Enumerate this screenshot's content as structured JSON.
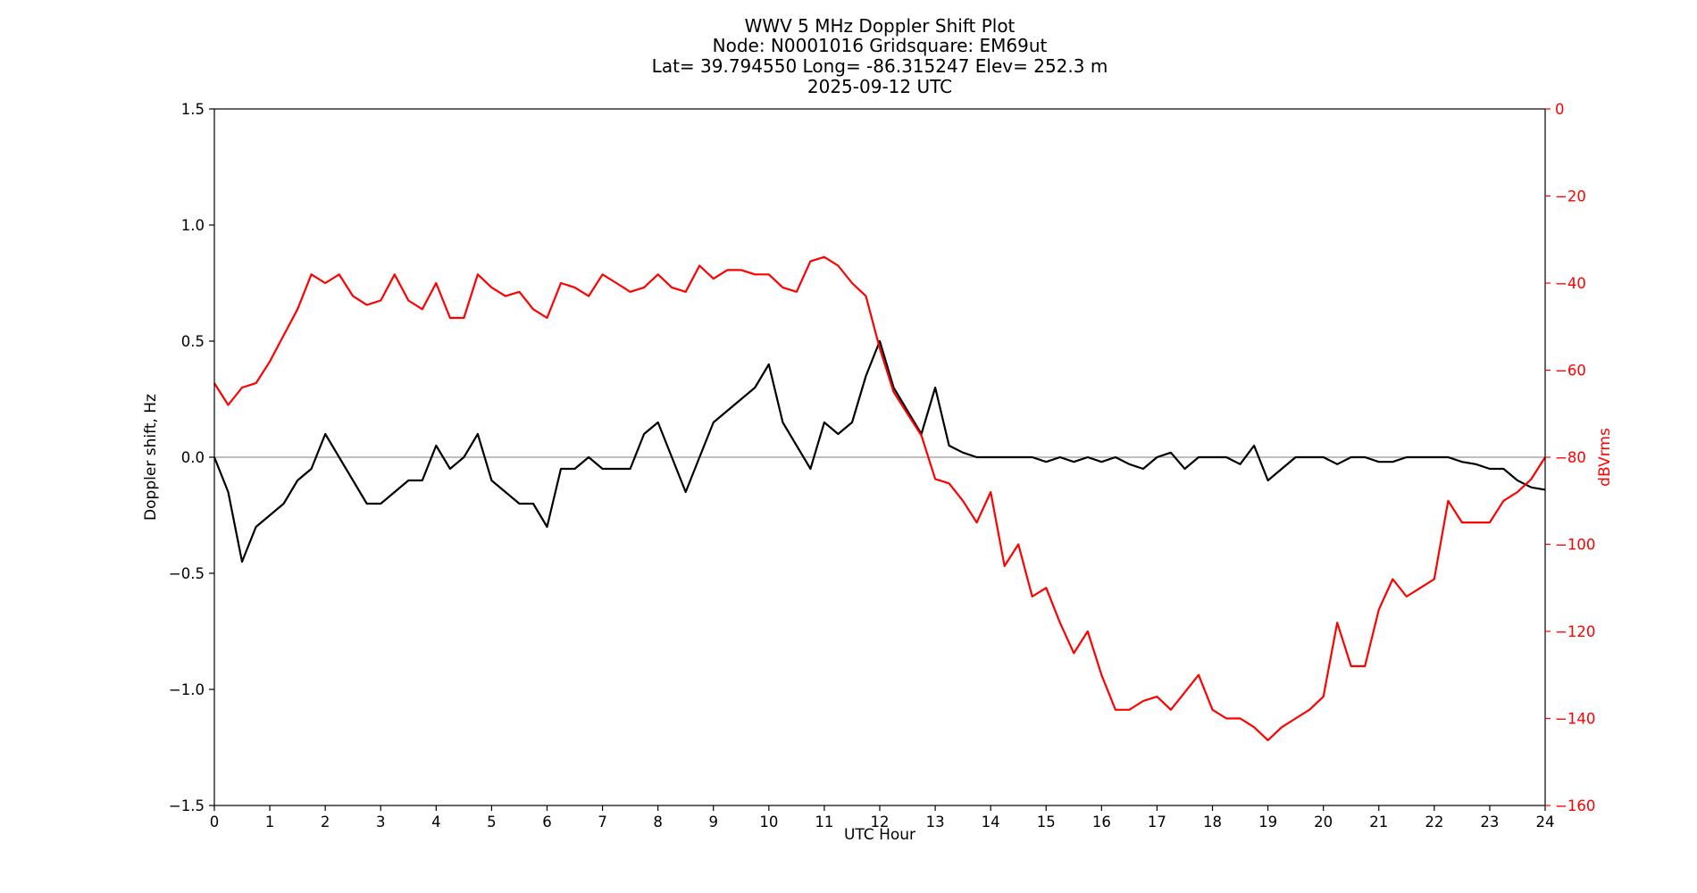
{
  "chart_data": {
    "type": "line",
    "title_lines": [
      "WWV 5 MHz Doppler Shift Plot",
      "Node:  N0001016     Gridsquare:  EM69ut",
      "Lat= 39.794550    Long= -86.315247    Elev= 252.3 m",
      "2025-09-12  UTC"
    ],
    "xlabel": "UTC Hour",
    "ylabel_left": "Doppler shift, Hz",
    "ylabel_right": "dBVrms",
    "xlim": [
      0,
      24
    ],
    "ylim_left": [
      -1.5,
      1.5
    ],
    "ylim_right": [
      -160,
      0
    ],
    "x_ticks": [
      "0",
      "1",
      "2",
      "3",
      "4",
      "5",
      "6",
      "7",
      "8",
      "9",
      "10",
      "11",
      "12",
      "13",
      "14",
      "15",
      "16",
      "17",
      "18",
      "19",
      "20",
      "21",
      "22",
      "23",
      "24"
    ],
    "y_ticks_left": [
      "1.5",
      "1.0",
      "0.5",
      "0.0",
      "−0.5",
      "−1.0",
      "−1.5"
    ],
    "y_ticks_right": [
      "0",
      "−20",
      "−40",
      "−60",
      "−80",
      "−100",
      "−120",
      "−140",
      "−160"
    ],
    "zero_reference_line": 0.0,
    "colors": {
      "doppler": "#000000",
      "power": "#ff0000",
      "zero_line": "#999999",
      "right_axis": "#ff0000"
    },
    "series": [
      {
        "axis": "left",
        "x": [
          0,
          0.25,
          0.5,
          0.75,
          1,
          1.25,
          1.5,
          1.75,
          2,
          2.25,
          2.5,
          2.75,
          3,
          3.25,
          3.5,
          3.75,
          4,
          4.25,
          4.5,
          4.75,
          5,
          5.25,
          5.5,
          5.75,
          6,
          6.25,
          6.5,
          6.75,
          7,
          7.25,
          7.5,
          7.75,
          8,
          8.25,
          8.5,
          8.75,
          9,
          9.25,
          9.5,
          9.75,
          10,
          10.25,
          10.5,
          10.75,
          11,
          11.25,
          11.5,
          11.75,
          12,
          12.25,
          12.5,
          12.75,
          13,
          13.25,
          13.5,
          13.75,
          14,
          14.25,
          14.5,
          14.75,
          15,
          15.25,
          15.5,
          15.75,
          16,
          16.25,
          16.5,
          16.75,
          17,
          17.25,
          17.5,
          17.75,
          18,
          18.25,
          18.5,
          18.75,
          19,
          19.25,
          19.5,
          19.75,
          20,
          20.25,
          20.5,
          20.75,
          21,
          21.25,
          21.5,
          21.75,
          22,
          22.25,
          22.5,
          22.75,
          23,
          23.25,
          23.5,
          23.75,
          24
        ],
        "values": [
          0.0,
          -0.15,
          -0.45,
          -0.3,
          -0.25,
          -0.2,
          -0.1,
          -0.05,
          0.1,
          0.0,
          -0.1,
          -0.2,
          -0.2,
          -0.15,
          -0.1,
          -0.1,
          0.05,
          -0.05,
          0.0,
          0.1,
          -0.1,
          -0.15,
          -0.2,
          -0.2,
          -0.3,
          -0.05,
          -0.05,
          0.0,
          -0.05,
          -0.05,
          -0.05,
          0.1,
          0.15,
          0.0,
          -0.15,
          0.0,
          0.15,
          0.2,
          0.25,
          0.3,
          0.4,
          0.15,
          0.05,
          -0.05,
          0.15,
          0.1,
          0.15,
          0.35,
          0.5,
          0.3,
          0.2,
          0.1,
          0.3,
          0.05,
          0.02,
          0.0,
          0.0,
          0.0,
          0.0,
          0.0,
          -0.02,
          0.0,
          -0.02,
          0.0,
          -0.02,
          0.0,
          -0.03,
          -0.05,
          0.0,
          0.02,
          -0.05,
          0.0,
          0.0,
          0.0,
          -0.03,
          0.05,
          -0.1,
          -0.05,
          0.0,
          0.0,
          0.0,
          -0.03,
          0.0,
          0.0,
          -0.02,
          -0.02,
          0.0,
          0.0,
          0.0,
          0.0,
          -0.02,
          -0.03,
          -0.05,
          -0.05,
          -0.1,
          -0.13,
          -0.14
        ]
      },
      {
        "axis": "right",
        "x": [
          0,
          0.25,
          0.5,
          0.75,
          1,
          1.25,
          1.5,
          1.75,
          2,
          2.25,
          2.5,
          2.75,
          3,
          3.25,
          3.5,
          3.75,
          4,
          4.25,
          4.5,
          4.75,
          5,
          5.25,
          5.5,
          5.75,
          6,
          6.25,
          6.5,
          6.75,
          7,
          7.25,
          7.5,
          7.75,
          8,
          8.25,
          8.5,
          8.75,
          9,
          9.25,
          9.5,
          9.75,
          10,
          10.25,
          10.5,
          10.75,
          11,
          11.25,
          11.5,
          11.75,
          12,
          12.25,
          12.5,
          12.75,
          13,
          13.25,
          13.5,
          13.75,
          14,
          14.25,
          14.5,
          14.75,
          15,
          15.25,
          15.5,
          15.75,
          16,
          16.25,
          16.5,
          16.75,
          17,
          17.25,
          17.5,
          17.75,
          18,
          18.25,
          18.5,
          18.75,
          19,
          19.25,
          19.5,
          19.75,
          20,
          20.25,
          20.5,
          20.75,
          21,
          21.25,
          21.5,
          21.75,
          22,
          22.25,
          22.5,
          22.75,
          23,
          23.25,
          23.5,
          23.75,
          24
        ],
        "values": [
          -63,
          -68,
          -64,
          -63,
          -58,
          -52,
          -46,
          -38,
          -40,
          -38,
          -43,
          -45,
          -44,
          -38,
          -44,
          -46,
          -40,
          -48,
          -48,
          -38,
          -41,
          -43,
          -42,
          -46,
          -48,
          -40,
          -41,
          -43,
          -38,
          -40,
          -42,
          -41,
          -38,
          -41,
          -42,
          -36,
          -39,
          -37,
          -37,
          -38,
          -38,
          -41,
          -42,
          -35,
          -34,
          -36,
          -40,
          -43,
          -55,
          -65,
          -70,
          -75,
          -85,
          -86,
          -90,
          -95,
          -88,
          -105,
          -100,
          -112,
          -110,
          -118,
          -125,
          -120,
          -130,
          -138,
          -138,
          -136,
          -135,
          -138,
          -134,
          -130,
          -138,
          -140,
          -140,
          -142,
          -145,
          -142,
          -140,
          -138,
          -135,
          -118,
          -128,
          -128,
          -115,
          -108,
          -112,
          -110,
          -108,
          -90,
          -95,
          -95,
          -95,
          -90,
          -88,
          -85,
          -80
        ]
      }
    ]
  }
}
